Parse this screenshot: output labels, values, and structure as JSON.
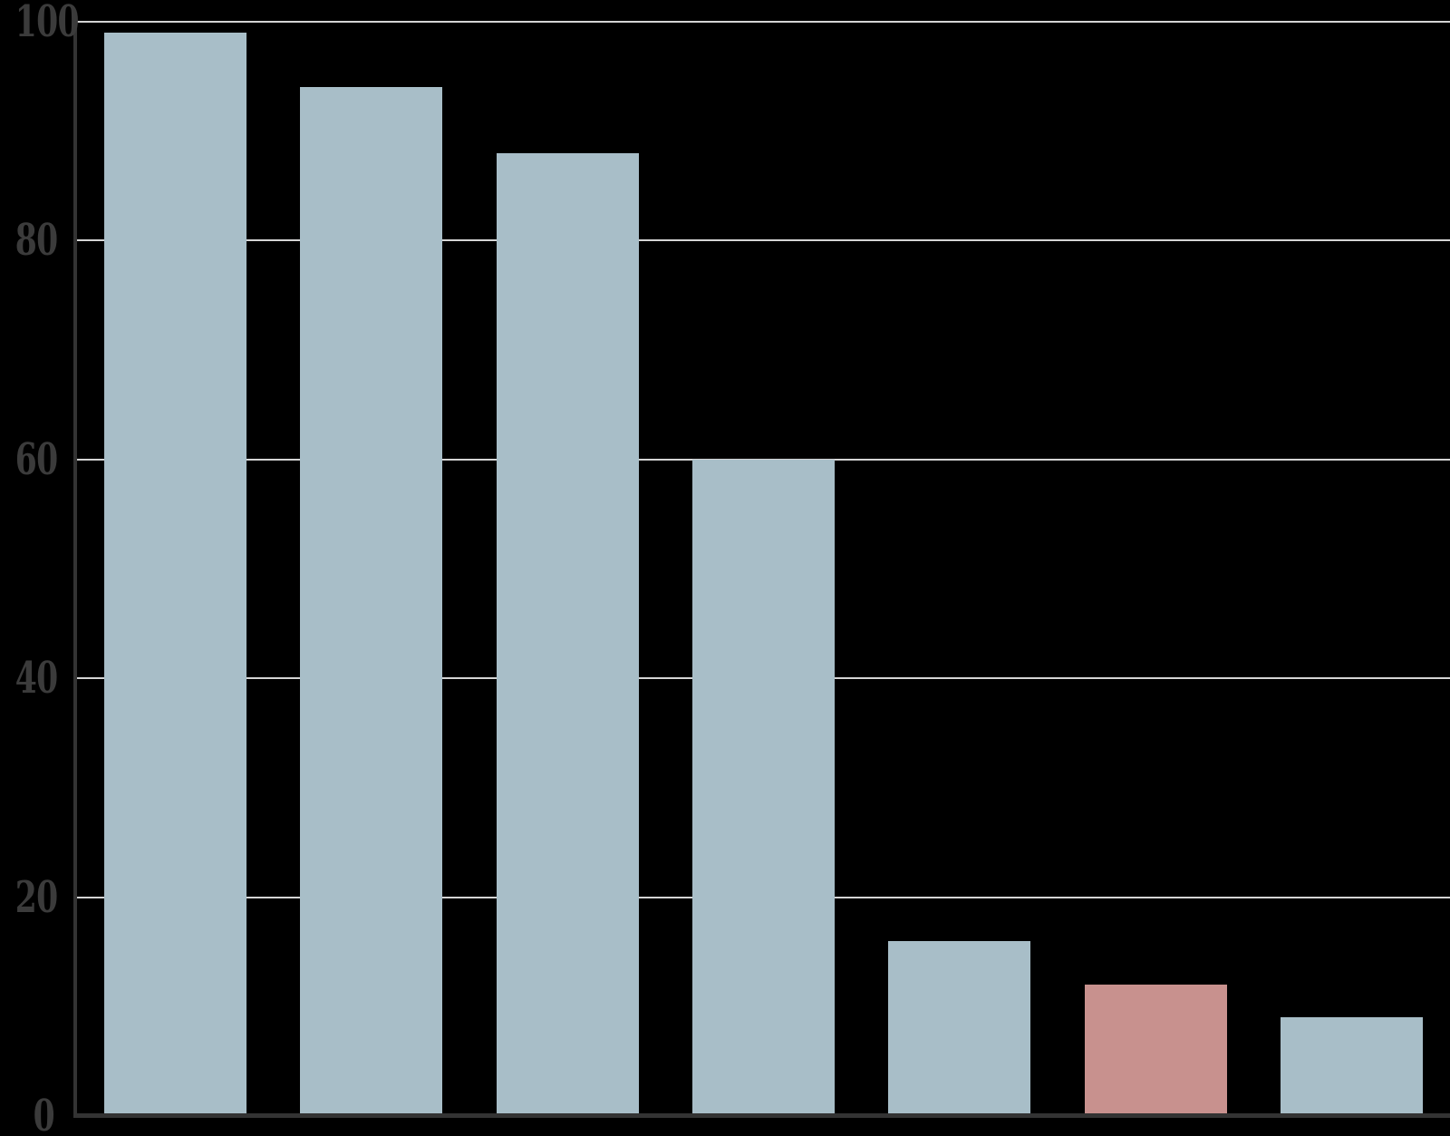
{
  "chart_data": {
    "type": "bar",
    "title": "",
    "xlabel": "",
    "ylabel": "",
    "values": [
      99,
      94,
      88,
      60,
      16,
      12,
      9
    ],
    "bar_colors": [
      "#a8bec8",
      "#a8bec8",
      "#a8bec8",
      "#a8bec8",
      "#a8bec8",
      "#c8918e",
      "#a8bec8"
    ],
    "highlighted_index": 5,
    "ylim": [
      0,
      100
    ],
    "yticks": [
      0,
      20,
      40,
      60,
      80,
      100
    ],
    "ytick_labels": [
      "0",
      "20",
      "40",
      "60",
      "80",
      "100"
    ],
    "grid": "horizontal",
    "gridlines_behind_bars": true,
    "legend": "none",
    "x_tick_labels_visible": false
  },
  "colors": {
    "background": "#000000",
    "bar": "#a8bec8",
    "highlight": "#c8918e",
    "gridline": "#d4d4d4",
    "axis": "#333333",
    "tick_label": "#3b3b3b"
  }
}
